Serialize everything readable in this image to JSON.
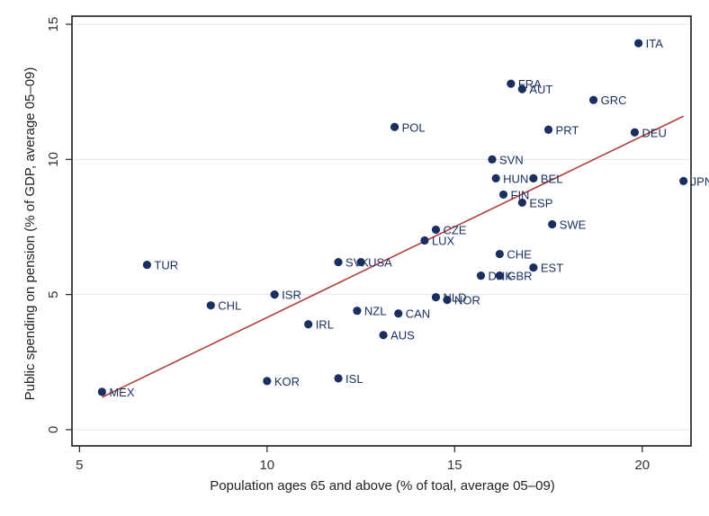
{
  "chart_data": {
    "type": "scatter",
    "title": "",
    "xlabel": "Population ages 65 and above (% of toal, average 05–09)",
    "ylabel": "Public spending on pension (% of GDP, average 05–09)",
    "xlim": [
      4.8,
      21.3
    ],
    "ylim": [
      -0.6,
      15.3
    ],
    "xticks": [
      5,
      10,
      15,
      20
    ],
    "yticks": [
      0,
      5,
      10,
      15
    ],
    "xtick_labels": [
      "5",
      "10",
      "15",
      "20"
    ],
    "ytick_labels": [
      "0",
      "5",
      "10",
      "15"
    ],
    "grid": "horizontal",
    "legend": "none",
    "colors": {
      "point": "#1a2f5e",
      "label": "#1a2f5e",
      "fit_line": "#b0413e",
      "grid": "#dfe6ee"
    },
    "points": [
      {
        "label": "ITA",
        "x": 19.9,
        "y": 14.3
      },
      {
        "label": "FRA",
        "x": 16.5,
        "y": 12.8
      },
      {
        "label": "AUT",
        "x": 16.8,
        "y": 12.6
      },
      {
        "label": "GRC",
        "x": 18.7,
        "y": 12.2
      },
      {
        "label": "POL",
        "x": 13.4,
        "y": 11.2
      },
      {
        "label": "PRT",
        "x": 17.5,
        "y": 11.1
      },
      {
        "label": "DEU",
        "x": 19.8,
        "y": 11.0
      },
      {
        "label": "SVN",
        "x": 16.0,
        "y": 10.0
      },
      {
        "label": "HUN",
        "x": 16.1,
        "y": 9.3
      },
      {
        "label": "BEL",
        "x": 17.1,
        "y": 9.3
      },
      {
        "label": "JPN",
        "x": 21.1,
        "y": 9.2
      },
      {
        "label": "FIN",
        "x": 16.3,
        "y": 8.7
      },
      {
        "label": "ESP",
        "x": 16.8,
        "y": 8.4
      },
      {
        "label": "SWE",
        "x": 17.6,
        "y": 7.6
      },
      {
        "label": "CZE",
        "x": 14.5,
        "y": 7.4
      },
      {
        "label": "LUX",
        "x": 14.2,
        "y": 7.0
      },
      {
        "label": "TUR",
        "x": 6.8,
        "y": 6.1
      },
      {
        "label": "SVK",
        "x": 11.9,
        "y": 6.2
      },
      {
        "label": "USA",
        "x": 12.5,
        "y": 6.2
      },
      {
        "label": "CHE",
        "x": 16.2,
        "y": 6.5
      },
      {
        "label": "EST",
        "x": 17.1,
        "y": 6.0
      },
      {
        "label": "DNK",
        "x": 15.7,
        "y": 5.7
      },
      {
        "label": "GBR",
        "x": 16.2,
        "y": 5.7
      },
      {
        "label": "ISR",
        "x": 10.2,
        "y": 5.0
      },
      {
        "label": "NLD",
        "x": 14.5,
        "y": 4.9
      },
      {
        "label": "NOR",
        "x": 14.8,
        "y": 4.8
      },
      {
        "label": "CHL",
        "x": 8.5,
        "y": 4.6
      },
      {
        "label": "NZL",
        "x": 12.4,
        "y": 4.4
      },
      {
        "label": "CAN",
        "x": 13.5,
        "y": 4.3
      },
      {
        "label": "IRL",
        "x": 11.1,
        "y": 3.9
      },
      {
        "label": "AUS",
        "x": 13.1,
        "y": 3.5
      },
      {
        "label": "KOR",
        "x": 10.0,
        "y": 1.8
      },
      {
        "label": "ISL",
        "x": 11.9,
        "y": 1.9
      },
      {
        "label": "MEX",
        "x": 5.6,
        "y": 1.4
      }
    ],
    "fit_line": {
      "x": [
        5.6,
        21.1
      ],
      "y": [
        1.2,
        11.6
      ]
    }
  }
}
